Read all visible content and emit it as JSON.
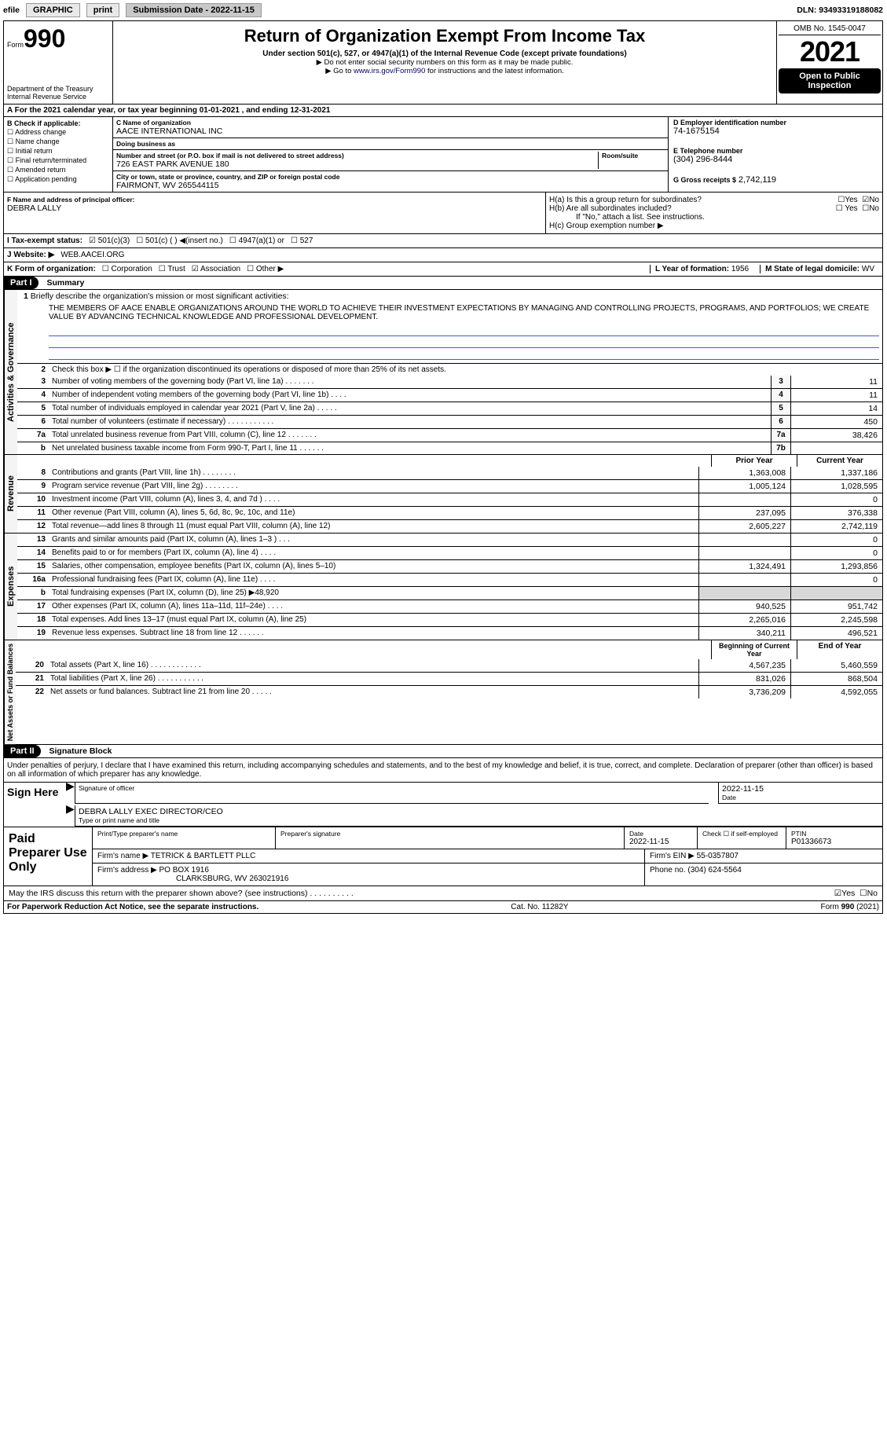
{
  "topbar": {
    "efile_prefix": "efile",
    "efile_label": "GRAPHIC",
    "print_btn": "print",
    "sub_date_label": "Submission Date - 2022-11-15",
    "dln": "DLN: 93493319188082"
  },
  "header": {
    "form_prefix": "Form",
    "form_number": "990",
    "dept": "Department of the Treasury",
    "irs": "Internal Revenue Service",
    "title": "Return of Organization Exempt From Income Tax",
    "subtitle": "Under section 501(c), 527, or 4947(a)(1) of the Internal Revenue Code (except private foundations)",
    "hint1": "▶ Do not enter social security numbers on this form as it may be made public.",
    "hint2_prefix": "▶ Go to ",
    "hint2_link": "www.irs.gov/Form990",
    "hint2_suffix": " for instructions and the latest information.",
    "omb": "OMB No. 1545-0047",
    "year": "2021",
    "open": "Open to Public Inspection"
  },
  "period": {
    "line": "A For the 2021 calendar year, or tax year beginning 01-01-2021    , and ending 12-31-2021"
  },
  "sectionB": {
    "heading": "B Check if applicable:",
    "items": [
      "☐ Address change",
      "☐ Name change",
      "☐ Initial return",
      "☐ Final return/terminated",
      "☐ Amended return",
      "☐ Application pending"
    ]
  },
  "sectionC": {
    "name_lbl": "C Name of organization",
    "name": "AACE INTERNATIONAL INC",
    "dba_lbl": "Doing business as",
    "dba": "",
    "street_lbl": "Number and street (or P.O. box if mail is not delivered to street address)",
    "room_lbl": "Room/suite",
    "street": "726 EAST PARK AVENUE 180",
    "city_lbl": "City or town, state or province, country, and ZIP or foreign postal code",
    "city": "FAIRMONT, WV  265544115"
  },
  "sectionD": {
    "lbl": "D Employer identification number",
    "val": "74-1675154"
  },
  "sectionE": {
    "lbl": "E Telephone number",
    "val": "(304) 296-8444"
  },
  "sectionG": {
    "lbl": "G Gross receipts $",
    "val": "2,742,119"
  },
  "sectionF": {
    "lbl": "F Name and address of principal officer:",
    "val": "DEBRA LALLY"
  },
  "sectionH": {
    "a": "H(a)  Is this a group return for subordinates?",
    "a_yes": "☐Yes",
    "a_no": "☑No",
    "b": "H(b)  Are all subordinates included?",
    "b_yes": "☐ Yes",
    "b_no": "☐No",
    "b_note": "If \"No,\" attach a list. See instructions.",
    "c": "H(c)  Group exemption number ▶"
  },
  "sectionI": {
    "lbl": "I    Tax-exempt status:",
    "opts": [
      "☑ 501(c)(3)",
      "☐ 501(c) (  ) ◀(insert no.)",
      "☐ 4947(a)(1) or",
      "☐ 527"
    ]
  },
  "sectionJ": {
    "lbl": "J    Website: ▶",
    "val": "WEB.AACEI.ORG"
  },
  "sectionK": {
    "lbl": "K Form of organization:",
    "opts": [
      "☐ Corporation",
      "☐ Trust",
      "☑ Association",
      "☐ Other ▶"
    ]
  },
  "sectionL": {
    "lbl": "L Year of formation:",
    "val": "1956"
  },
  "sectionM": {
    "lbl": "M State of legal domicile:",
    "val": "WV"
  },
  "part1": {
    "tag": "Part I",
    "title": "Summary",
    "q1_lbl": "1",
    "q1_txt": "Briefly describe the organization's mission or most significant activities:",
    "mission": "THE MEMBERS OF AACE ENABLE ORGANIZATIONS AROUND THE WORLD TO ACHIEVE THEIR INVESTMENT EXPECTATIONS BY MANAGING AND CONTROLLING PROJECTS, PROGRAMS, AND PORTFOLIOS; WE CREATE VALUE BY ADVANCING TECHNICAL KNOWLEDGE AND PROFESSIONAL DEVELOPMENT.",
    "q2": "Check this box ▶ ☐ if the organization discontinued its operations or disposed of more than 25% of its net assets.",
    "vtab_ag": "Activities & Governance",
    "vtab_rev": "Revenue",
    "vtab_exp": "Expenses",
    "vtab_net": "Net Assets or Fund Balances",
    "col_prior": "Prior Year",
    "col_curr": "Current Year",
    "col_begin": "Beginning of Current Year",
    "col_end": "End of Year",
    "lines_ag": [
      {
        "n": "3",
        "t": "Number of voting members of the governing body (Part VI, line 1a)   .    .    .    .    .    .    .",
        "box": "3",
        "v": "11"
      },
      {
        "n": "4",
        "t": "Number of independent voting members of the governing body (Part VI, line 1b)   .    .    .    .",
        "box": "4",
        "v": "11"
      },
      {
        "n": "5",
        "t": "Total number of individuals employed in calendar year 2021 (Part V, line 2a)   .    .    .    .    .",
        "box": "5",
        "v": "14"
      },
      {
        "n": "6",
        "t": "Total number of volunteers (estimate if necessary)    .    .    .    .    .    .    .    .    .    .    .",
        "box": "6",
        "v": "450"
      },
      {
        "n": "7a",
        "t": "Total unrelated business revenue from Part VIII, column (C), line 12   .    .    .    .    .    .    .",
        "box": "7a",
        "v": "38,426"
      },
      {
        "n": "b",
        "t": "Net unrelated business taxable income from Form 990-T, Part I, line 11    .    .    .    .    .    .",
        "box": "7b",
        "v": ""
      }
    ],
    "lines_rev": [
      {
        "n": "8",
        "t": "Contributions and grants (Part VIII, line 1h)    .    .    .    .    .    .    .    .",
        "p": "1,363,008",
        "c": "1,337,186"
      },
      {
        "n": "9",
        "t": "Program service revenue (Part VIII, line 2g)   .    .    .    .    .    .    .    .",
        "p": "1,005,124",
        "c": "1,028,595"
      },
      {
        "n": "10",
        "t": "Investment income (Part VIII, column (A), lines 3, 4, and 7d )   .    .    .    .",
        "p": "",
        "c": "0"
      },
      {
        "n": "11",
        "t": "Other revenue (Part VIII, column (A), lines 5, 6d, 8c, 9c, 10c, and 11e)",
        "p": "237,095",
        "c": "376,338"
      },
      {
        "n": "12",
        "t": "Total revenue—add lines 8 through 11 (must equal Part VIII, column (A), line 12)",
        "p": "2,605,227",
        "c": "2,742,119"
      }
    ],
    "lines_exp": [
      {
        "n": "13",
        "t": "Grants and similar amounts paid (Part IX, column (A), lines 1–3 )   .    .    .",
        "p": "",
        "c": "0"
      },
      {
        "n": "14",
        "t": "Benefits paid to or for members (Part IX, column (A), line 4)   .    .    .    .",
        "p": "",
        "c": "0"
      },
      {
        "n": "15",
        "t": "Salaries, other compensation, employee benefits (Part IX, column (A), lines 5–10)",
        "p": "1,324,491",
        "c": "1,293,856"
      },
      {
        "n": "16a",
        "t": "Professional fundraising fees (Part IX, column (A), line 11e)    .    .    .    .",
        "p": "",
        "c": "0"
      },
      {
        "n": "b",
        "t": "Total fundraising expenses (Part IX, column (D), line 25) ▶48,920",
        "p": "__shade__",
        "c": "__shade__"
      },
      {
        "n": "17",
        "t": "Other expenses (Part IX, column (A), lines 11a–11d, 11f–24e)    .    .    .    .",
        "p": "940,525",
        "c": "951,742"
      },
      {
        "n": "18",
        "t": "Total expenses. Add lines 13–17 (must equal Part IX, column (A), line 25)",
        "p": "2,265,016",
        "c": "2,245,598"
      },
      {
        "n": "19",
        "t": "Revenue less expenses. Subtract line 18 from line 12    .    .    .    .    .    .",
        "p": "340,211",
        "c": "496,521"
      }
    ],
    "lines_net": [
      {
        "n": "20",
        "t": "Total assets (Part X, line 16)   .    .    .    .    .    .    .    .    .    .    .    .",
        "p": "4,567,235",
        "c": "5,460,559"
      },
      {
        "n": "21",
        "t": "Total liabilities (Part X, line 26)    .    .    .    .    .    .    .    .    .    .    .",
        "p": "831,026",
        "c": "868,504"
      },
      {
        "n": "22",
        "t": "Net assets or fund balances. Subtract line 21 from line 20   .    .    .    .    .",
        "p": "3,736,209",
        "c": "4,592,055"
      }
    ]
  },
  "part2": {
    "tag": "Part II",
    "title": "Signature Block",
    "decl": "Under penalties of perjury, I declare that I have examined this return, including accompanying schedules and statements, and to the best of my knowledge and belief, it is true, correct, and complete. Declaration of preparer (other than officer) is based on all information of which preparer has any knowledge.",
    "sign_here": "Sign Here",
    "sig_officer": "Signature of officer",
    "sig_date": "Date",
    "sig_date_val": "2022-11-15",
    "name_title": "DEBRA LALLY  EXEC DIRECTOR/CEO",
    "name_title_lbl": "Type or print name and title",
    "paid": "Paid Preparer Use Only",
    "p_name_lbl": "Print/Type preparer's name",
    "p_sig_lbl": "Preparer's signature",
    "p_date_lbl": "Date",
    "p_date": "2022-11-15",
    "p_check_lbl": "Check ☐ if self-employed",
    "ptin_lbl": "PTIN",
    "ptin": "P01336673",
    "firm_name_lbl": "Firm's name    ▶",
    "firm_name": "TETRICK & BARTLETT PLLC",
    "firm_ein_lbl": "Firm's EIN ▶",
    "firm_ein": "55-0357807",
    "firm_addr_lbl": "Firm's address ▶",
    "firm_addr1": "PO BOX 1916",
    "firm_addr2": "CLARKSBURG, WV  263021916",
    "phone_lbl": "Phone no.",
    "phone": "(304) 624-5564",
    "discuss": "May the IRS discuss this return with the preparer shown above? (see instructions)    .    .    .    .    .    .    .    .    .    .",
    "discuss_yes": "☑Yes",
    "discuss_no": "☐No"
  },
  "footer": {
    "left": "For Paperwork Reduction Act Notice, see the separate instructions.",
    "mid": "Cat. No. 11282Y",
    "right": "Form 990 (2021)"
  }
}
